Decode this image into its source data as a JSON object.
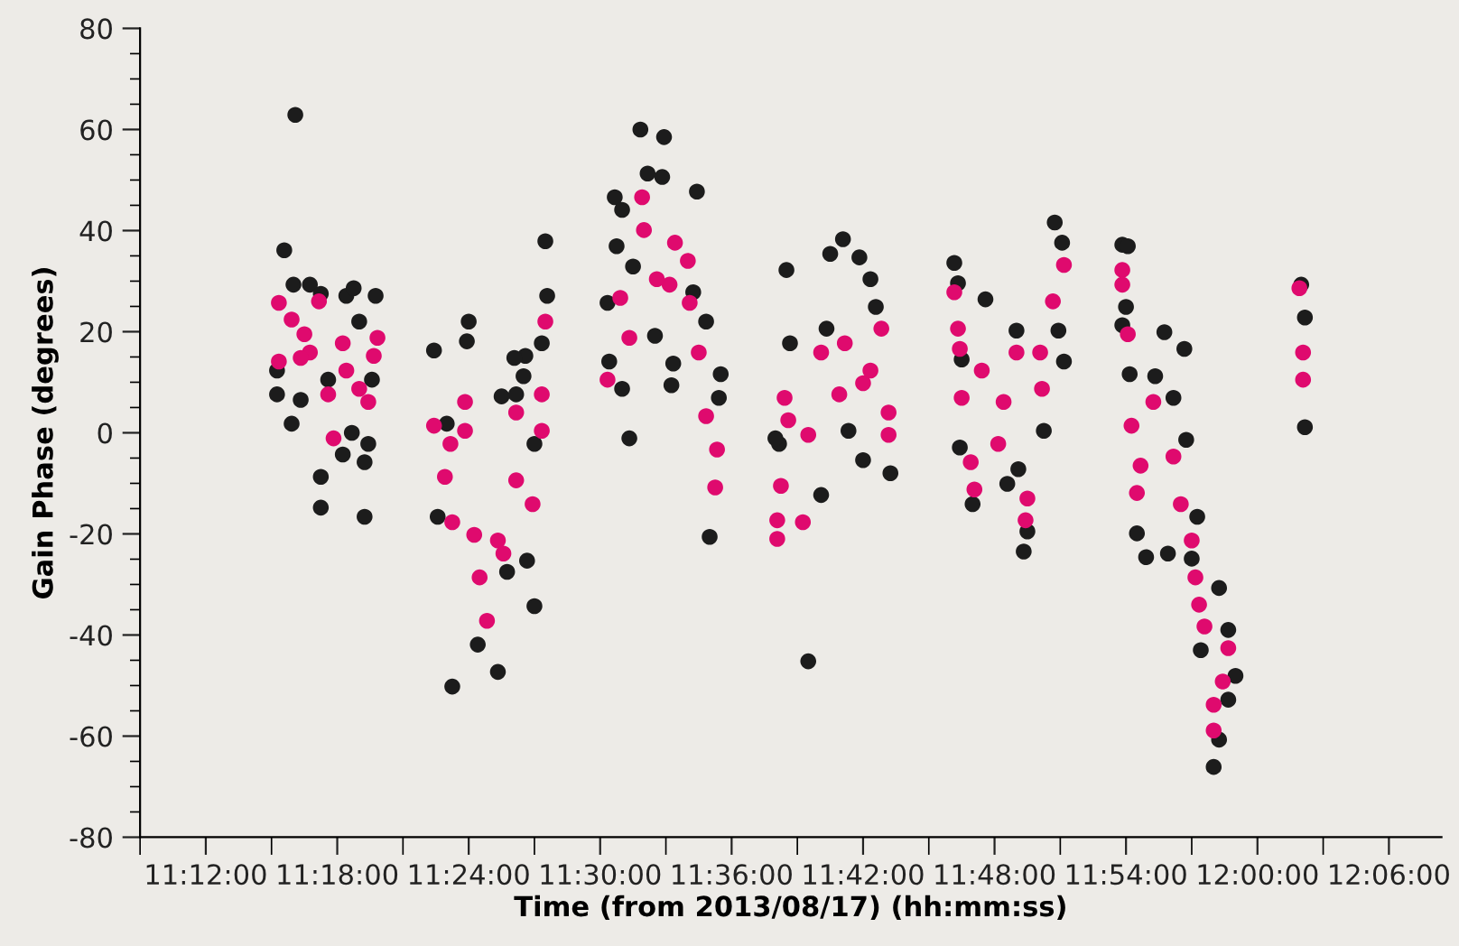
{
  "chart_data": {
    "type": "scatter",
    "xlabel": "Time (from 2013/08/17) (hh:mm:ss)",
    "ylabel": "Gain Phase (degrees)",
    "xlim": [
      11.15,
      12.14
    ],
    "ylim": [
      -80,
      80
    ],
    "xticks": [
      {
        "value": 11.15,
        "label": null
      },
      {
        "value": 11.2,
        "label": "11:12:00"
      },
      {
        "value": 11.25,
        "label": null
      },
      {
        "value": 11.3,
        "label": "11:18:00"
      },
      {
        "value": 11.35,
        "label": null
      },
      {
        "value": 11.4,
        "label": "11:24:00"
      },
      {
        "value": 11.45,
        "label": null
      },
      {
        "value": 11.5,
        "label": "11:30:00"
      },
      {
        "value": 11.55,
        "label": null
      },
      {
        "value": 11.6,
        "label": "11:36:00"
      },
      {
        "value": 11.65,
        "label": null
      },
      {
        "value": 11.7,
        "label": "11:42:00"
      },
      {
        "value": 11.75,
        "label": null
      },
      {
        "value": 11.8,
        "label": "11:48:00"
      },
      {
        "value": 11.85,
        "label": null
      },
      {
        "value": 11.9,
        "label": "11:54:00"
      },
      {
        "value": 11.95,
        "label": null
      },
      {
        "value": 12.0,
        "label": "12:00:00"
      },
      {
        "value": 12.05,
        "label": null
      },
      {
        "value": 12.1,
        "label": "12:06:00"
      }
    ],
    "yticks": [
      -80,
      {
        "value": -75,
        "label": null
      },
      {
        "value": -70,
        "label": null
      },
      {
        "value": -65,
        "label": null
      },
      -60,
      {
        "value": -55,
        "label": null
      },
      {
        "value": -50,
        "label": null
      },
      {
        "value": -45,
        "label": null
      },
      -40,
      {
        "value": -35,
        "label": null
      },
      {
        "value": -30,
        "label": null
      },
      {
        "value": -25,
        "label": null
      },
      -20,
      {
        "value": -15,
        "label": null
      },
      {
        "value": -10,
        "label": null
      },
      {
        "value": -5,
        "label": null
      },
      0,
      {
        "value": 5,
        "label": null
      },
      {
        "value": 10,
        "label": null
      },
      {
        "value": 15,
        "label": null
      },
      20,
      {
        "value": 25,
        "label": null
      },
      {
        "value": 30,
        "label": null
      },
      {
        "value": 35,
        "label": null
      },
      40,
      {
        "value": 45,
        "label": null
      },
      {
        "value": 50,
        "label": null
      },
      {
        "value": 55,
        "label": null
      },
      60,
      {
        "value": 65,
        "label": null
      },
      {
        "value": 70,
        "label": null
      },
      {
        "value": 75,
        "label": null
      },
      80
    ],
    "grid": false,
    "marker": "circle",
    "series": [
      {
        "color": "#1c1c1c",
        "x": [
          11.2681,
          11.2597,
          11.2667,
          11.2792,
          11.2875,
          11.3069,
          11.3125,
          11.3292,
          11.3167,
          11.2542,
          11.2653,
          11.2722,
          11.2875,
          11.2875,
          11.3042,
          11.3208,
          11.3208,
          11.3111,
          11.2931,
          11.2542,
          11.3264,
          11.3236,
          11.4431,
          11.4417,
          11.4583,
          11.4597,
          11.4556,
          11.45,
          11.4444,
          11.4292,
          11.4222,
          11.4069,
          11.3875,
          11.3764,
          11.4,
          11.3986,
          11.3736,
          11.4347,
          11.4361,
          11.425,
          11.45,
          11.3833,
          11.5306,
          11.5486,
          11.5361,
          11.5472,
          11.5736,
          11.5111,
          11.5167,
          11.5125,
          11.525,
          11.5056,
          11.5069,
          11.5167,
          11.5222,
          11.5417,
          11.5556,
          11.5542,
          11.5806,
          11.5917,
          11.5903,
          11.5833,
          11.5708,
          11.6417,
          11.6583,
          11.6847,
          11.6972,
          11.7,
          11.6444,
          11.6361,
          11.675,
          11.7056,
          11.7097,
          11.6722,
          11.7208,
          11.6681,
          11.6333,
          11.6889,
          11.7694,
          11.7722,
          11.7931,
          11.8458,
          11.8514,
          11.8167,
          11.8528,
          11.8486,
          11.7736,
          11.7833,
          11.8097,
          11.8181,
          11.8222,
          11.825,
          11.775,
          11.8375,
          11.8972,
          11.9014,
          11.9,
          11.8972,
          11.9292,
          11.9444,
          11.9028,
          11.9222,
          11.9361,
          11.9083,
          11.9153,
          11.9319,
          11.95,
          11.9542,
          11.9708,
          11.9778,
          11.9833,
          11.9778,
          11.9708,
          11.9667,
          11.9569,
          11.9458,
          12.0333,
          12.0361,
          12.0361
        ],
        "values": [
          62.9,
          36.1,
          29.3,
          29.3,
          27.5,
          27.1,
          28.6,
          27.1,
          22.0,
          7.6,
          1.8,
          6.5,
          -8.7,
          -14.8,
          -4.3,
          -5.8,
          -16.6,
          0,
          10.5,
          12.3,
          10.5,
          -2.2,
          15.2,
          11.2,
          37.9,
          27.1,
          17.7,
          -34.3,
          -25.3,
          -27.5,
          -47.3,
          -41.9,
          -50.2,
          -16.6,
          22.0,
          18.1,
          16.3,
          14.8,
          7.6,
          7.2,
          -2.2,
          1.8,
          60.0,
          58.5,
          51.3,
          50.6,
          47.7,
          46.6,
          44.1,
          36.9,
          32.9,
          25.7,
          14.1,
          8.7,
          -1.1,
          19.2,
          13.7,
          9.4,
          22.0,
          11.6,
          6.9,
          -20.6,
          27.8,
          32.2,
          -45.2,
          38.3,
          34.7,
          -5.4,
          17.7,
          -2.2,
          35.4,
          30.4,
          24.9,
          20.6,
          -8.0,
          -12.3,
          -1.1,
          0.4,
          33.6,
          29.6,
          26.4,
          41.6,
          37.6,
          20.2,
          14.1,
          20.2,
          -2.9,
          -14.1,
          -10.1,
          -7.2,
          -23.5,
          -19.5,
          14.5,
          0.4,
          37.2,
          36.9,
          24.9,
          21.3,
          19.9,
          16.6,
          11.6,
          11.2,
          6.9,
          -19.9,
          -24.6,
          -23.9,
          -24.9,
          -16.6,
          -30.7,
          -39.0,
          -48.1,
          -52.8,
          -60.7,
          -66.1,
          -43.0,
          -1.4,
          29.3,
          22.8,
          1.1
        ]
      },
      {
        "color": "#df0a6e",
        "x": [
          11.2556,
          11.2653,
          11.2556,
          11.2792,
          11.2861,
          11.3042,
          11.2931,
          11.2972,
          11.3167,
          11.3306,
          11.3278,
          11.3236,
          11.3069,
          11.275,
          11.2722,
          11.3736,
          11.3861,
          11.3972,
          11.3972,
          11.3819,
          11.3875,
          11.4042,
          11.4083,
          11.4139,
          11.4222,
          11.4361,
          11.4486,
          11.4556,
          11.4556,
          11.4583,
          11.4361,
          11.4264,
          11.5319,
          11.5333,
          11.5569,
          11.5667,
          11.5528,
          11.5153,
          11.5222,
          11.5056,
          11.5681,
          11.575,
          11.5806,
          11.5889,
          11.5875,
          11.5431,
          11.6347,
          11.6347,
          11.6542,
          11.6375,
          11.6431,
          11.6403,
          11.6583,
          11.6681,
          11.6861,
          11.7,
          11.7139,
          11.7194,
          11.7194,
          11.6819,
          11.7056,
          11.7694,
          11.7722,
          11.7736,
          11.775,
          11.7819,
          11.7847,
          11.8028,
          11.8167,
          11.8347,
          11.8361,
          11.8444,
          11.8528,
          11.825,
          11.8236,
          11.7903,
          11.8069,
          11.8972,
          11.8972,
          11.9014,
          11.9042,
          11.9111,
          11.9208,
          11.9361,
          11.9417,
          11.95,
          11.9528,
          11.9556,
          11.9597,
          11.9778,
          11.9736,
          11.9667,
          11.9667,
          11.9083,
          12.0319,
          12.0347,
          12.0347
        ],
        "values": [
          25.7,
          22.4,
          14.1,
          15.9,
          26.0,
          17.7,
          7.6,
          -1.1,
          8.7,
          18.8,
          15.2,
          6.1,
          12.3,
          19.5,
          14.8,
          1.4,
          -2.2,
          0.4,
          6.1,
          -8.7,
          -17.7,
          -20.2,
          -28.6,
          -37.2,
          -21.3,
          -9.4,
          -14.1,
          0.4,
          7.6,
          22.0,
          4.0,
          -23.9,
          46.6,
          40.1,
          37.6,
          34.0,
          29.3,
          26.7,
          18.8,
          10.5,
          25.7,
          15.9,
          3.3,
          -3.3,
          -10.8,
          30.4,
          -21.0,
          -17.3,
          -17.7,
          -10.5,
          2.5,
          6.9,
          -0.4,
          15.9,
          17.7,
          9.8,
          20.6,
          4.0,
          -0.4,
          7.6,
          12.3,
          27.8,
          20.6,
          16.6,
          6.9,
          -5.8,
          -11.2,
          -2.2,
          15.9,
          15.9,
          8.7,
          26.0,
          33.2,
          -13.0,
          -17.3,
          12.3,
          6.1,
          32.2,
          29.3,
          19.5,
          1.4,
          -6.5,
          6.1,
          -4.7,
          -14.1,
          -21.3,
          -28.6,
          -34.0,
          -38.3,
          -42.6,
          -49.2,
          -53.8,
          -58.9,
          -11.9,
          28.6,
          15.9,
          10.5
        ]
      }
    ]
  }
}
